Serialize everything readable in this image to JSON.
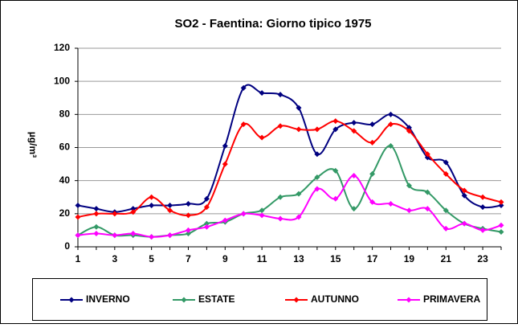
{
  "chart_data": {
    "type": "line",
    "title": "SO2 - Faentina: Giorno tipico 1975",
    "ylabel": "µg/m³",
    "categories": [
      1,
      null,
      3,
      null,
      5,
      null,
      7,
      null,
      9,
      null,
      11,
      null,
      13,
      null,
      15,
      null,
      17,
      null,
      19,
      null,
      21,
      null,
      23,
      null
    ],
    "ylim": [
      0,
      120
    ],
    "yticks": [
      0,
      20,
      40,
      60,
      80,
      100,
      120
    ],
    "grid": true,
    "legend": "bottom",
    "series": [
      {
        "name": "INVERNO",
        "color": "#000080",
        "values": [
          25,
          23,
          21,
          23,
          25,
          25,
          26,
          29,
          61,
          96,
          93,
          92,
          84,
          56,
          71,
          75,
          74,
          80,
          72,
          54,
          51,
          31,
          24,
          25
        ]
      },
      {
        "name": "ESTATE",
        "color": "#339966",
        "values": [
          7,
          12,
          7,
          7,
          6,
          7,
          8,
          14,
          15,
          20,
          22,
          30,
          32,
          42,
          46,
          23,
          44,
          61,
          37,
          33,
          22,
          14,
          11,
          9
        ]
      },
      {
        "name": "AUTUNNO",
        "color": "#ff0000",
        "values": [
          18,
          20,
          20,
          21,
          30,
          22,
          19,
          24,
          50,
          74,
          66,
          73,
          71,
          71,
          76,
          70,
          63,
          74,
          70,
          56,
          44,
          34,
          30,
          27
        ]
      },
      {
        "name": "PRIMAVERA",
        "color": "#ff00ff",
        "values": [
          7,
          8,
          7,
          8,
          6,
          7,
          10,
          12,
          16,
          20,
          19,
          17,
          18,
          35,
          29,
          43,
          27,
          26,
          22,
          23,
          11,
          14,
          10,
          13
        ]
      }
    ]
  }
}
